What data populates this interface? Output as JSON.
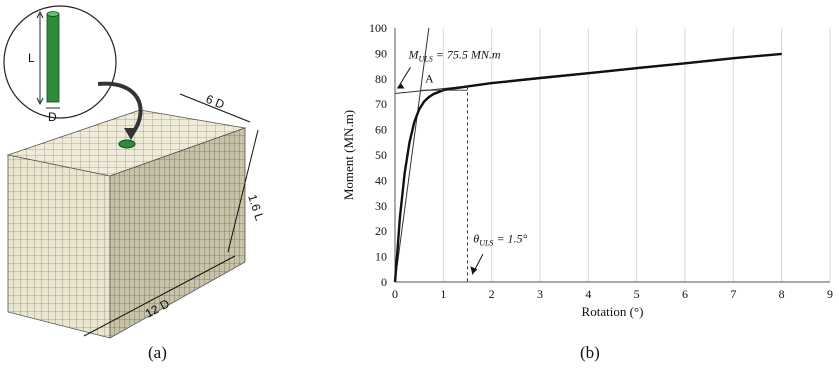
{
  "panel_a": {
    "caption": "(a)",
    "pile_length_label": "L",
    "pile_diameter_label": "D",
    "dim_depth": "6 D",
    "dim_height": "1.6 L",
    "dim_width": "12 D",
    "colors": {
      "pile": "#2e8b3a",
      "mesh_face": "#e9e5cf",
      "mesh_line": "#5a5a4a"
    }
  },
  "panel_b": {
    "caption": "(b)"
  },
  "chart_data": {
    "type": "line",
    "title": "",
    "xlabel": "Rotation (°)",
    "ylabel": "Moment (MN.m)",
    "xlim": [
      0,
      9
    ],
    "ylim": [
      0,
      100
    ],
    "xticks": [
      0,
      1,
      2,
      3,
      4,
      5,
      6,
      7,
      8,
      9
    ],
    "yticks": [
      0,
      10,
      20,
      30,
      40,
      50,
      60,
      70,
      80,
      90,
      100
    ],
    "grid": "vertical",
    "series": [
      {
        "x": [
          0,
          0.05,
          0.1,
          0.2,
          0.3,
          0.4,
          0.5,
          0.6,
          0.7,
          0.8,
          1.0,
          1.2,
          1.5,
          2.0,
          3.0,
          4.0,
          5.0,
          6.0,
          7.0,
          8.0
        ],
        "y": [
          0,
          12,
          25,
          43,
          55,
          63,
          68,
          71,
          72.8,
          74,
          75.5,
          76.2,
          77,
          78.3,
          80.3,
          82.2,
          84.2,
          86.1,
          88.1,
          89.8
        ]
      }
    ],
    "tangent_lines": [
      {
        "x": [
          0,
          0.7
        ],
        "y": [
          0,
          100
        ]
      },
      {
        "x": [
          0,
          8
        ],
        "y": [
          74.2,
          89.8
        ]
      }
    ],
    "annotations": {
      "m_uls_label": "M",
      "m_uls_sub": "ULS",
      "m_uls_value": " = 75.5 MN.m",
      "m_uls": 75.5,
      "point_label": "A",
      "theta_label": "θ",
      "theta_sub": "ULS",
      "theta_value": " = 1.5°",
      "theta_uls": 1.5
    }
  }
}
